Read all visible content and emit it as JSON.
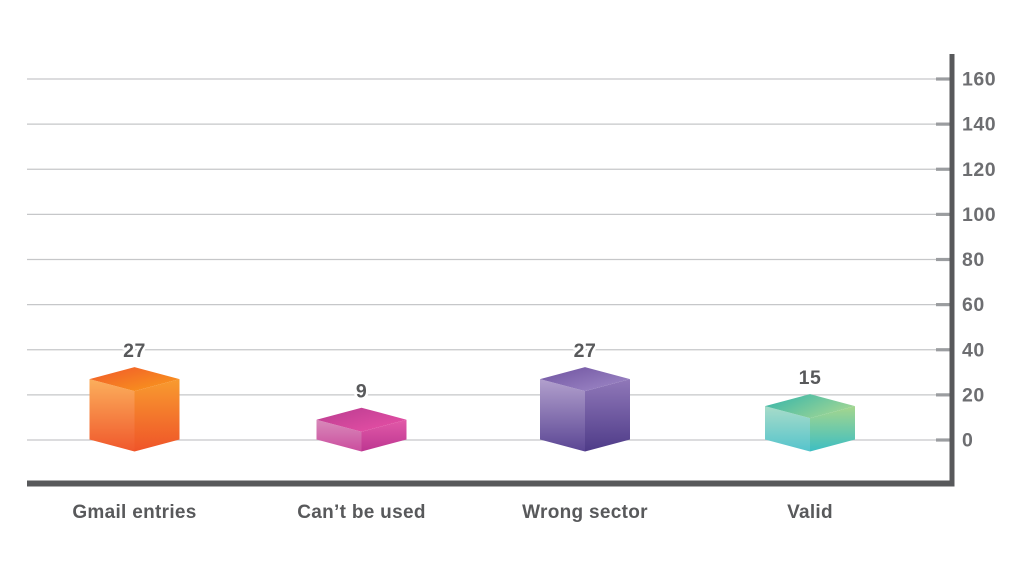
{
  "page": {
    "background": "#ffffff"
  },
  "chart_data": {
    "type": "bar",
    "style": "3d-cube-infographic",
    "title": "",
    "xlabel": "",
    "ylabel": "",
    "categories": [
      "Gmail entries",
      "Can’t be used",
      "Wrong sector",
      "Valid"
    ],
    "values": [
      27,
      9,
      27,
      15
    ],
    "value_labels": [
      "27",
      "9",
      "27",
      "15"
    ],
    "ylim": [
      0,
      160
    ],
    "ytick_step": 20,
    "ytick_labels": [
      "0",
      "20",
      "40",
      "60",
      "80",
      "100",
      "120",
      "140",
      "160"
    ],
    "yaxis_side": "right",
    "grid": true,
    "legend": false,
    "colors": {
      "background": "#ffffff",
      "grid_line": "#c6c7c9",
      "tick_mark": "#9b9da0",
      "axis_line": "#58595b",
      "base_line": "#58595b",
      "tick_label": "#6d6e71",
      "value_label": "#58595b",
      "category_label": "#58595b"
    },
    "series_colors": [
      {
        "name": "orange",
        "top": [
          "#f1582a",
          "#f99c1c"
        ],
        "left": [
          "#fbaf5c",
          "#f0582c"
        ],
        "right": [
          "#f89b2f",
          "#ef5429"
        ]
      },
      {
        "name": "magenta",
        "top": [
          "#b93c90",
          "#ea51a7"
        ],
        "left": [
          "#d88aba",
          "#cb4d9e"
        ],
        "right": [
          "#e25aa8",
          "#bd3691"
        ]
      },
      {
        "name": "purple",
        "top": [
          "#6f53a0",
          "#a08ac8"
        ],
        "left": [
          "#b2a0cd",
          "#5b4694"
        ],
        "right": [
          "#9078b9",
          "#4e3b88"
        ]
      },
      {
        "name": "teal",
        "top": [
          "#2fb3ab",
          "#9ed595"
        ],
        "left": [
          "#a8dcc9",
          "#55c4cc"
        ],
        "right": [
          "#a5d68d",
          "#3dbec2"
        ]
      }
    ]
  }
}
